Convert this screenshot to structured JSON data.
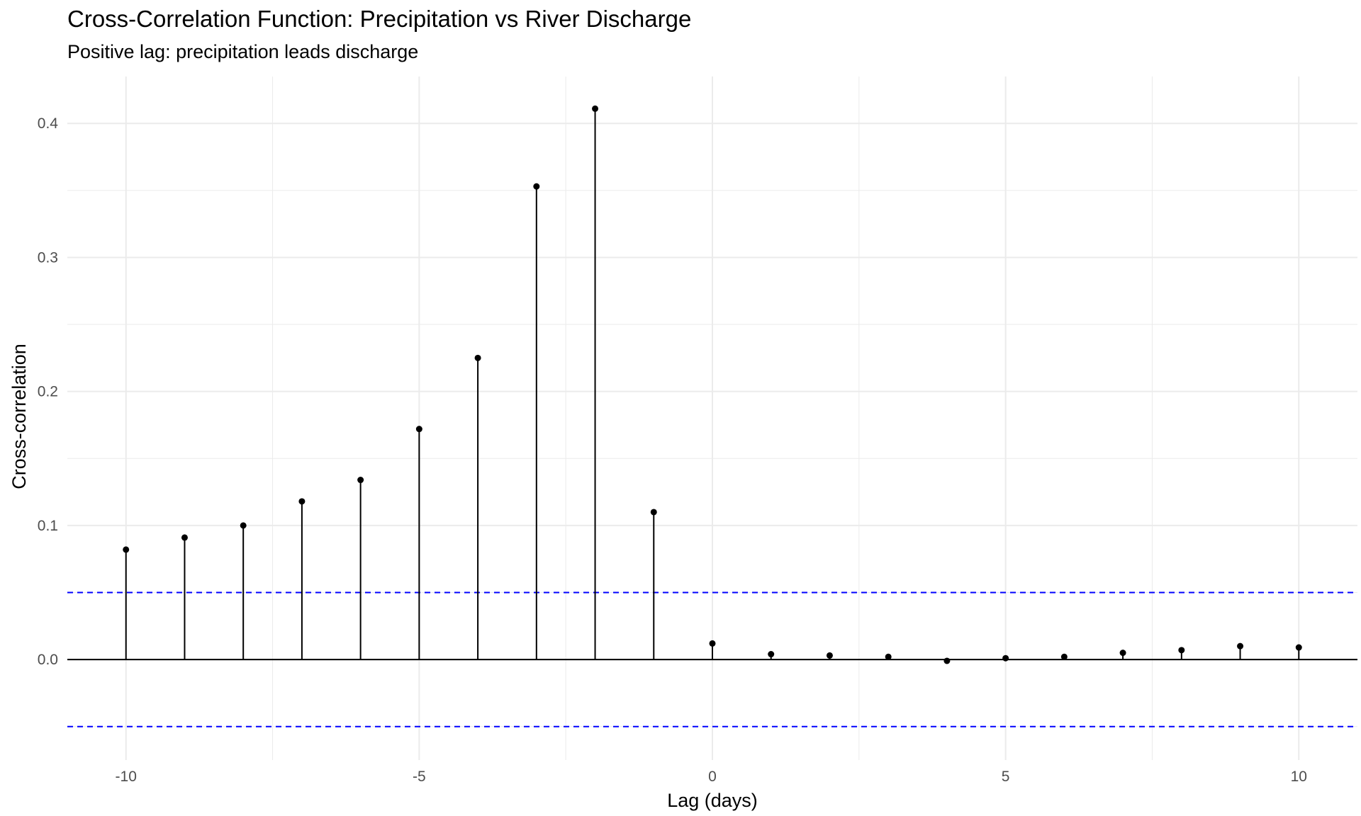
{
  "chart_data": {
    "type": "scatter",
    "style": "stem",
    "title": "Cross-Correlation Function: Precipitation vs River Discharge",
    "subtitle": "Positive lag: precipitation leads discharge",
    "xlabel": "Lag (days)",
    "ylabel": "Cross-correlation",
    "xlim": [
      -11,
      11
    ],
    "ylim": [
      -0.075,
      0.435
    ],
    "x_ticks": [
      -10,
      -5,
      0,
      5,
      10
    ],
    "x_tick_labels": [
      "-10",
      "-5",
      "0",
      "5",
      "10"
    ],
    "y_ticks": [
      0.0,
      0.1,
      0.2,
      0.3,
      0.4
    ],
    "y_tick_labels": [
      "0.0",
      "0.1",
      "0.2",
      "0.3",
      "0.4"
    ],
    "grid": true,
    "x": [
      -10,
      -9,
      -8,
      -7,
      -6,
      -5,
      -4,
      -3,
      -2,
      -1,
      0,
      1,
      2,
      3,
      4,
      5,
      6,
      7,
      8,
      9,
      10
    ],
    "values": [
      0.082,
      0.091,
      0.1,
      0.118,
      0.134,
      0.172,
      0.225,
      0.353,
      0.411,
      0.11,
      0.012,
      0.004,
      0.003,
      0.002,
      -0.001,
      0.001,
      0.002,
      0.005,
      0.007,
      0.01,
      0.009
    ],
    "confidence_band": 0.05,
    "colors": {
      "stem": "#000000",
      "point": "#000000",
      "zero_line": "#000000",
      "band": "#0000ff",
      "grid": "#ebebeb"
    }
  }
}
